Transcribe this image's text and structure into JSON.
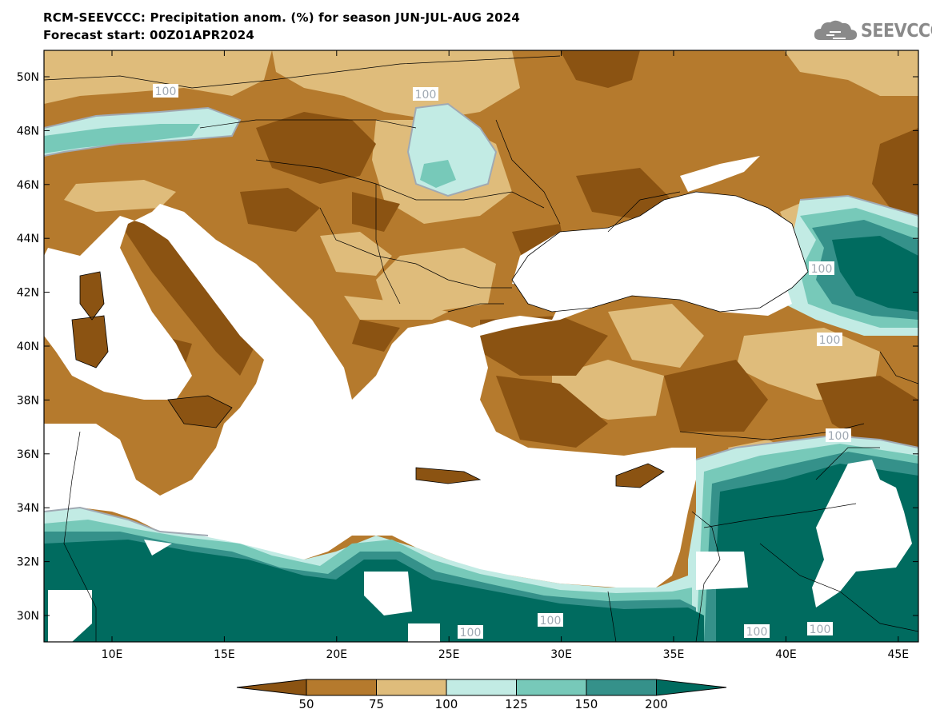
{
  "header": {
    "title": "RCM-SEEVCCC: Precipitation anom. (%) for season JUN-JUL-AUG 2024",
    "subtitle": "Forecast start: 00Z01APR2024"
  },
  "logo": {
    "text": "SEEVCCC",
    "icon": "cloud-icon"
  },
  "map": {
    "lat_ticks": [
      "50N",
      "48N",
      "46N",
      "44N",
      "42N",
      "40N",
      "38N",
      "36N",
      "34N",
      "32N",
      "30N"
    ],
    "lon_ticks": [
      "10E",
      "15E",
      "20E",
      "25E",
      "30E",
      "35E",
      "40E",
      "45E"
    ],
    "contour_label": "100"
  },
  "colorbar": {
    "labels": [
      "50",
      "75",
      "100",
      "125",
      "150",
      "200"
    ],
    "colors": [
      "#8b5312",
      "#b57a2d",
      "#dfbc7b",
      "#c2ebe4",
      "#77c9b9",
      "#35918a",
      "#006b5f"
    ]
  },
  "colors": {
    "ocean": "#ffffff",
    "land_dry_strong": "#8b5312",
    "land_dry": "#b57a2d",
    "land_neutral_dry": "#dfbc7b",
    "wet_light": "#c2ebe4",
    "wet_mid": "#77c9b9",
    "wet_strong": "#35918a",
    "wet_very": "#006b5f"
  }
}
